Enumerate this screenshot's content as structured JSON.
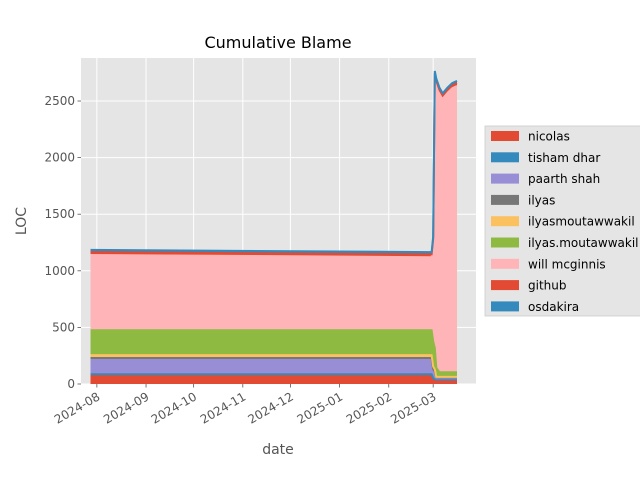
{
  "chart_data": {
    "type": "area",
    "stacked": true,
    "title": "Cumulative Blame",
    "xlabel": "date",
    "ylabel": "LOC",
    "x_type": "date",
    "xlim": [
      "2024-07-22",
      "2025-03-28"
    ],
    "ylim": [
      0,
      2880
    ],
    "x_ticks": [
      "2024-08-01",
      "2024-09-01",
      "2024-10-01",
      "2024-11-01",
      "2024-12-01",
      "2025-01-01",
      "2025-02-01",
      "2025-03-01"
    ],
    "x_tick_labels": [
      "2024-08",
      "2024-09",
      "2024-10",
      "2024-11",
      "2024-12",
      "2025-01",
      "2025-02",
      "2025-03"
    ],
    "y_ticks": [
      0,
      500,
      1000,
      1500,
      2000,
      2500
    ],
    "grid": true,
    "legend_position": "right",
    "x": [
      "2024-07-28",
      "2025-02-28",
      "2025-03-01",
      "2025-03-02",
      "2025-03-03",
      "2025-03-05",
      "2025-03-07",
      "2025-03-10",
      "2025-03-13",
      "2025-03-16"
    ],
    "series": [
      {
        "name": "nicolas",
        "color": "#E24A33",
        "values": [
          75,
          75,
          40,
          30,
          28,
          28,
          28,
          28,
          28,
          28
        ]
      },
      {
        "name": "tisham dhar",
        "color": "#348ABD",
        "values": [
          12,
          12,
          12,
          12,
          12,
          12,
          12,
          12,
          12,
          12
        ]
      },
      {
        "name": "paarth shah",
        "color": "#988ED5",
        "values": [
          135,
          135,
          70,
          60,
          10,
          10,
          10,
          10,
          10,
          10
        ]
      },
      {
        "name": "ilyas",
        "color": "#777777",
        "values": [
          8,
          8,
          8,
          8,
          8,
          8,
          8,
          8,
          8,
          8
        ]
      },
      {
        "name": "ilyasmoutawwakil",
        "color": "#FBC15E",
        "values": [
          25,
          25,
          25,
          20,
          5,
          5,
          5,
          5,
          5,
          5
        ]
      },
      {
        "name": "ilyas.moutawwakil",
        "color": "#8EBA42",
        "values": [
          220,
          220,
          220,
          190,
          80,
          40,
          40,
          40,
          40,
          40
        ]
      },
      {
        "name": "will mcginnis",
        "color": "#FFB5B8",
        "values": [
          665,
          645,
          885,
          2400,
          2510,
          2470,
          2420,
          2470,
          2510,
          2530
        ]
      },
      {
        "name": "github",
        "color": "#E24A33",
        "values": [
          25,
          25,
          25,
          25,
          25,
          25,
          25,
          25,
          25,
          25
        ]
      },
      {
        "name": "osdakira",
        "color": "#348ABD",
        "values": [
          20,
          20,
          20,
          20,
          20,
          20,
          20,
          20,
          20,
          20
        ]
      }
    ]
  }
}
